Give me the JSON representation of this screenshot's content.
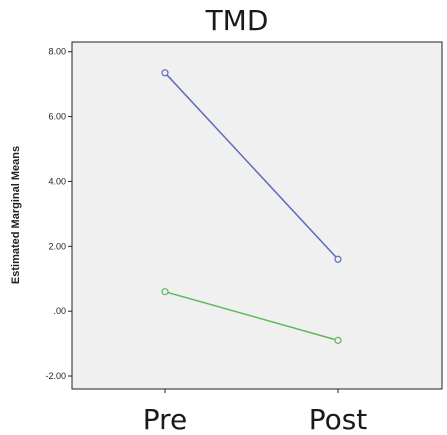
{
  "chart_data": {
    "type": "line",
    "title": "TMD",
    "xlabel": "",
    "ylabel": "Estimated Marginal Means",
    "categories": [
      "Pre",
      "Post"
    ],
    "ylim": [
      -2.4,
      8.3
    ],
    "yticks": [
      "8.00",
      "6.00",
      "4.00",
      "2.00",
      ".00",
      "-2.00"
    ],
    "ytick_values": [
      8,
      6,
      4,
      2,
      0,
      -2
    ],
    "grid": false,
    "legend": "none",
    "series": [
      {
        "values": [
          7.35,
          1.6
        ],
        "color": "#5b6bbf"
      },
      {
        "values": [
          0.6,
          -0.9
        ],
        "color": "#5cb85c"
      }
    ],
    "plot_background": "#f0f0f0",
    "axis_color": "#222222"
  }
}
